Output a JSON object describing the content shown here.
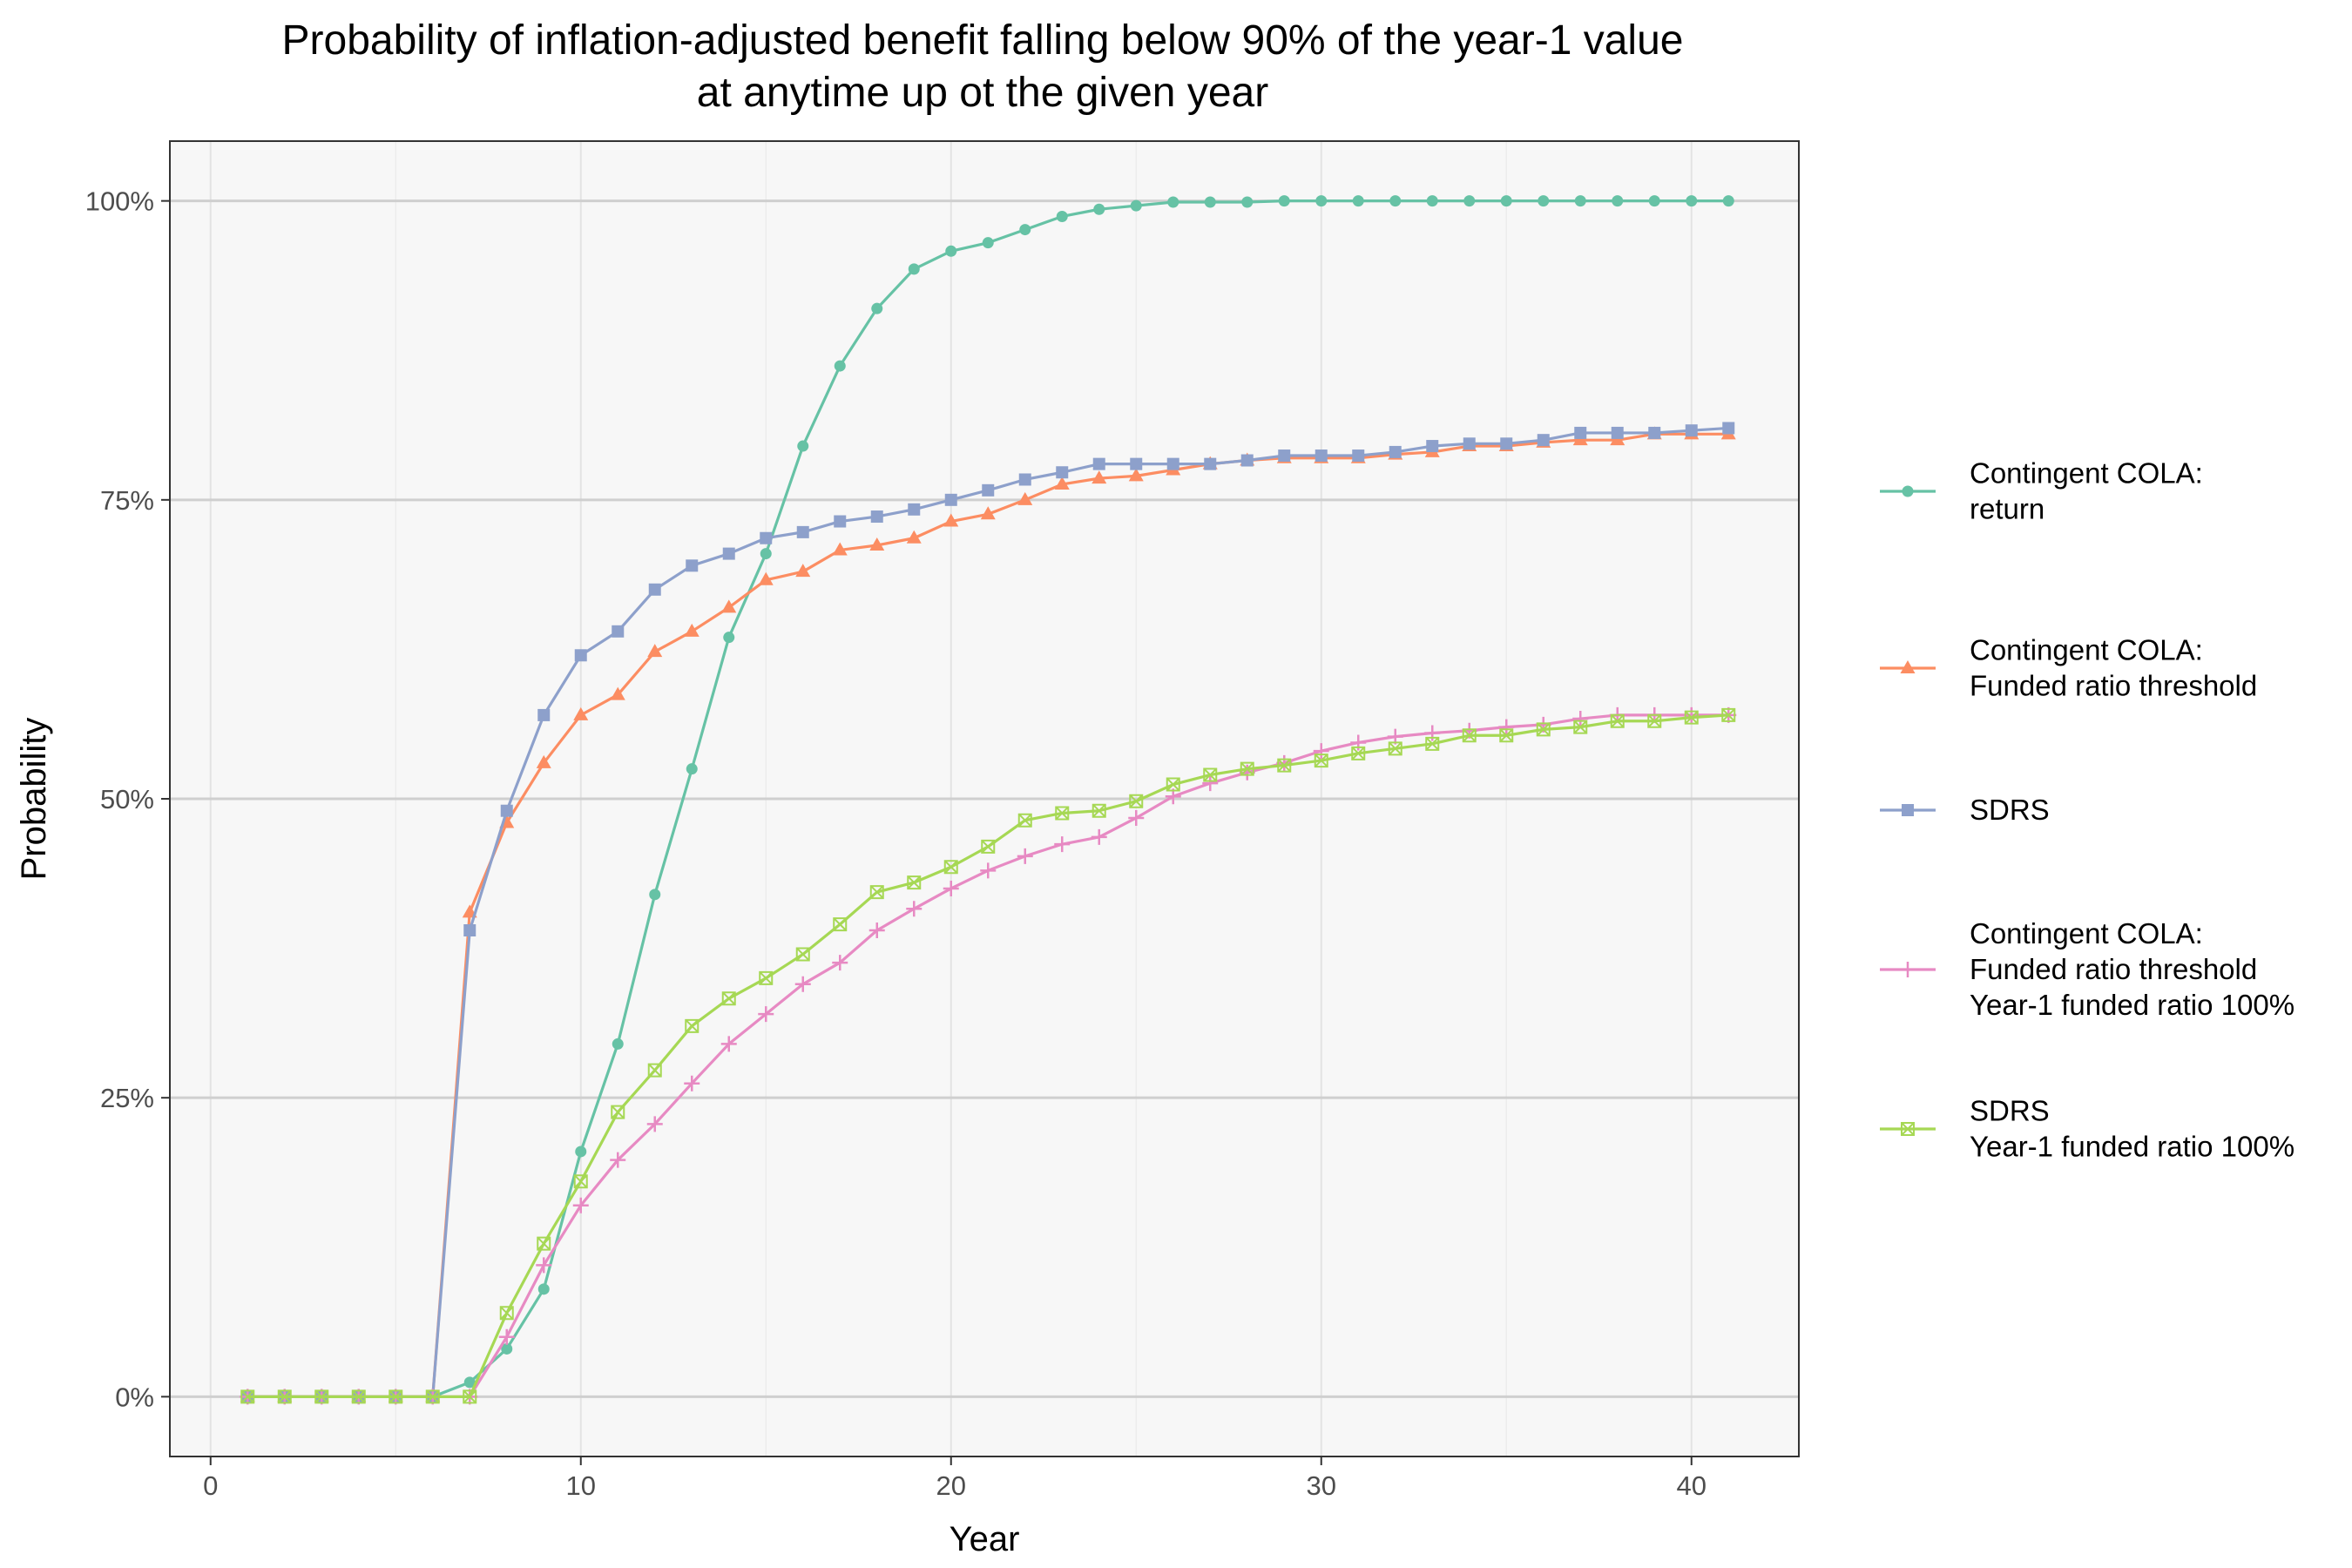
{
  "chart_data": {
    "type": "line",
    "title": [
      "Probability of inflation-adjusted benefit falling below 90% of the year-1 value",
      "at anytime up ot the given year"
    ],
    "xlabel": "Year",
    "ylabel": "Probability",
    "xlim": [
      -1.1,
      42.9
    ],
    "ylim": [
      -0.05,
      1.05
    ],
    "x_ticks": [
      0,
      10,
      20,
      30,
      40
    ],
    "x_tick_labels": [
      "0",
      "10",
      "20",
      "30",
      "40"
    ],
    "y_ticks": [
      0,
      0.25,
      0.5,
      0.75,
      1.0
    ],
    "y_tick_labels": [
      "0%",
      "25%",
      "50%",
      "75%",
      "100%"
    ],
    "grid": true,
    "legend_position": "right",
    "panel_background": "#f7f7f7",
    "x": [
      1,
      2,
      3,
      4,
      5,
      6,
      7,
      8,
      9,
      10,
      11,
      12,
      13,
      14,
      15,
      16,
      17,
      18,
      19,
      20,
      21,
      22,
      23,
      24,
      25,
      26,
      27,
      28,
      29,
      30,
      31,
      32,
      33,
      34,
      35,
      36,
      37,
      38,
      39,
      40,
      41
    ],
    "series": [
      {
        "name": [
          "Contingent COLA:",
          "return"
        ],
        "color": "#66c2a5",
        "marker": "circle",
        "values": [
          0,
          0,
          0,
          0,
          0,
          0,
          0.012,
          0.04,
          0.09,
          0.205,
          0.295,
          0.42,
          0.525,
          0.635,
          0.705,
          0.795,
          0.862,
          0.91,
          0.943,
          0.958,
          0.965,
          0.976,
          0.987,
          0.993,
          0.996,
          0.999,
          0.999,
          0.999,
          1,
          1,
          1,
          1,
          1,
          1,
          1,
          1,
          1,
          1,
          1,
          1,
          1
        ]
      },
      {
        "name": [
          "Contingent COLA:",
          "Funded ratio threshold"
        ],
        "color": "#fc8d62",
        "marker": "triangle",
        "values": [
          0,
          0,
          0,
          0,
          0,
          0,
          0.405,
          0.48,
          0.53,
          0.57,
          0.587,
          0.623,
          0.64,
          0.66,
          0.683,
          0.69,
          0.708,
          0.712,
          0.718,
          0.732,
          0.738,
          0.75,
          0.763,
          0.768,
          0.77,
          0.775,
          0.78,
          0.783,
          0.785,
          0.785,
          0.785,
          0.788,
          0.79,
          0.795,
          0.795,
          0.798,
          0.8,
          0.8,
          0.805,
          0.805,
          0.805
        ]
      },
      {
        "name": [
          "SDRS"
        ],
        "color": "#8da0cb",
        "marker": "square",
        "values": [
          0,
          0,
          0,
          0,
          0,
          0,
          0.39,
          0.49,
          0.57,
          0.62,
          0.64,
          0.675,
          0.695,
          0.705,
          0.718,
          0.723,
          0.732,
          0.736,
          0.742,
          0.75,
          0.758,
          0.767,
          0.773,
          0.78,
          0.78,
          0.78,
          0.78,
          0.783,
          0.787,
          0.787,
          0.787,
          0.79,
          0.795,
          0.797,
          0.797,
          0.8,
          0.806,
          0.806,
          0.806,
          0.808,
          0.81
        ]
      },
      {
        "name": [
          "Contingent COLA:",
          "Funded ratio threshold",
          "Year-1 funded ratio 100%"
        ],
        "color": "#e78ac3",
        "marker": "plus",
        "values": [
          0,
          0,
          0,
          0,
          0,
          0,
          0,
          0.05,
          0.11,
          0.16,
          0.198,
          0.228,
          0.262,
          0.295,
          0.32,
          0.345,
          0.363,
          0.39,
          0.408,
          0.425,
          0.44,
          0.452,
          0.462,
          0.468,
          0.484,
          0.502,
          0.513,
          0.522,
          0.53,
          0.54,
          0.547,
          0.552,
          0.555,
          0.557,
          0.56,
          0.562,
          0.567,
          0.57,
          0.57,
          0.57,
          0.57
        ]
      },
      {
        "name": [
          "SDRS",
          "Year-1 funded ratio 100%"
        ],
        "color": "#a6d854",
        "marker": "boxx",
        "values": [
          0,
          0,
          0,
          0,
          0,
          0,
          0,
          0.07,
          0.128,
          0.18,
          0.238,
          0.273,
          0.31,
          0.333,
          0.35,
          0.37,
          0.395,
          0.422,
          0.43,
          0.443,
          0.46,
          0.482,
          0.488,
          0.49,
          0.498,
          0.512,
          0.52,
          0.525,
          0.528,
          0.532,
          0.538,
          0.542,
          0.546,
          0.553,
          0.553,
          0.558,
          0.56,
          0.565,
          0.565,
          0.568,
          0.57
        ]
      }
    ]
  }
}
